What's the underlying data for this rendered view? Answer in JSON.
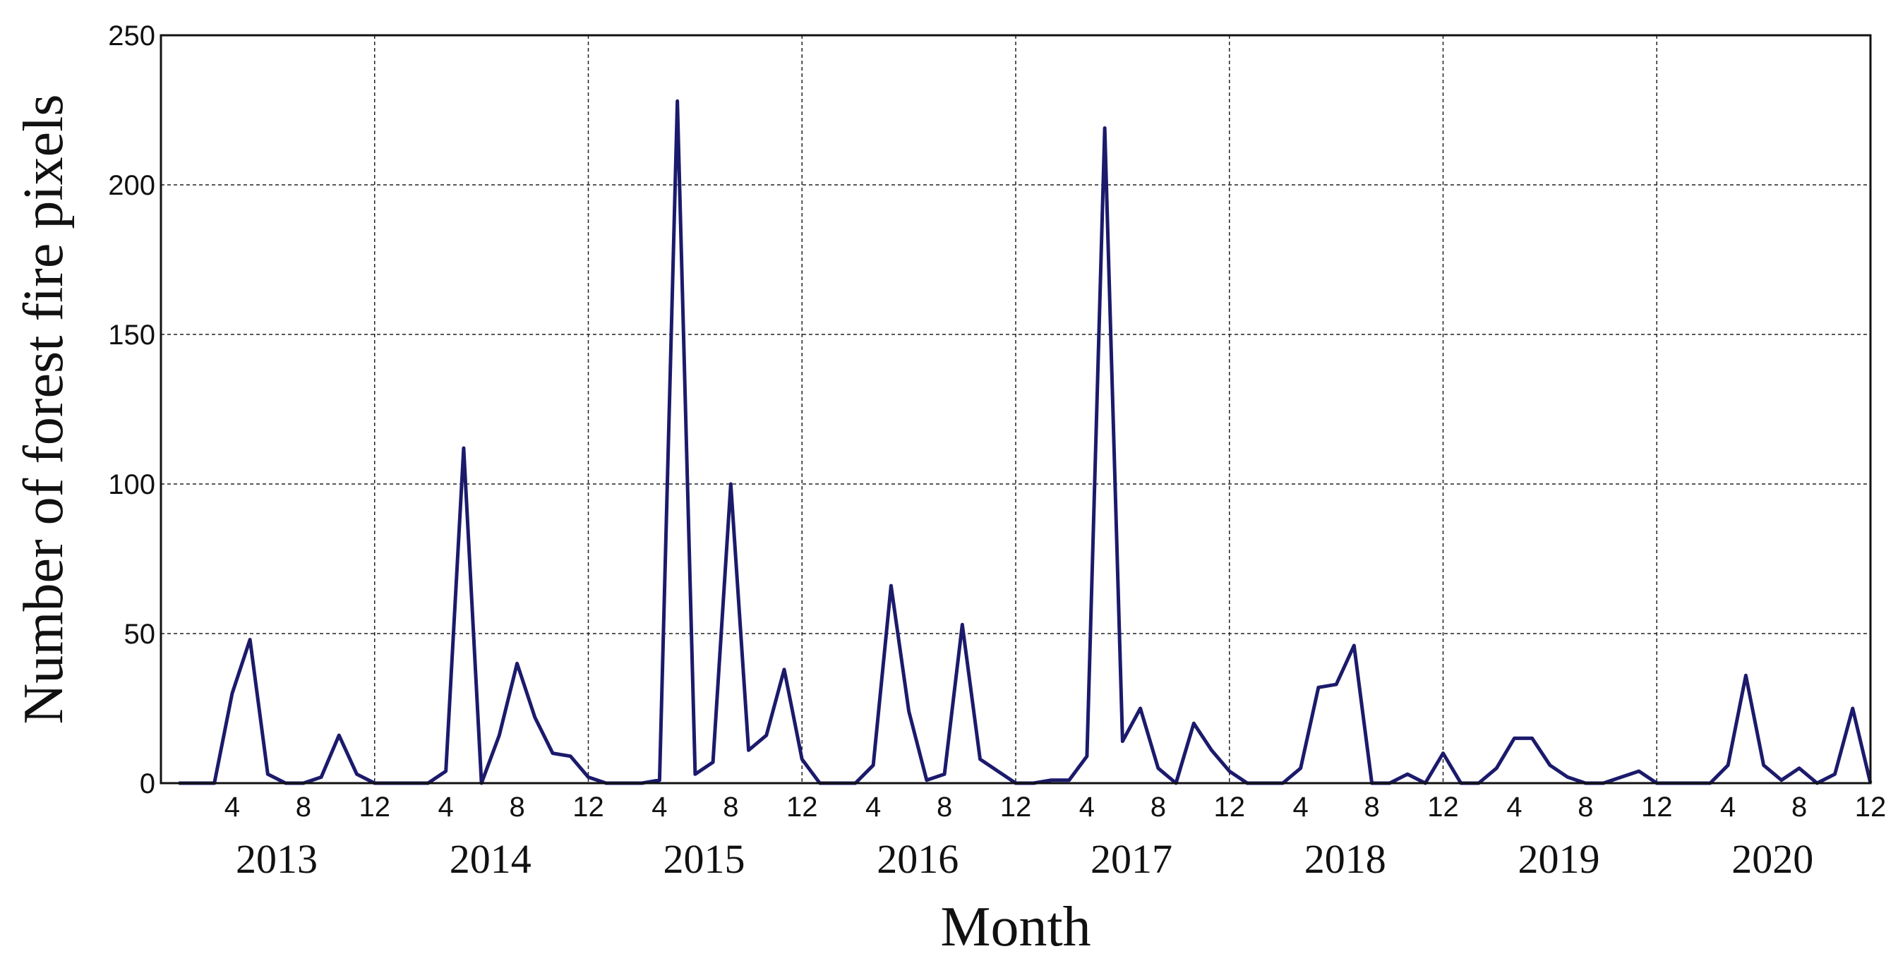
{
  "chart_data": {
    "type": "line",
    "title": "",
    "xlabel": "Month",
    "ylabel": "Number of forest fire pixels",
    "ylim": [
      0,
      250
    ],
    "yticks": [
      0,
      50,
      100,
      150,
      200,
      250
    ],
    "month_ticks": [
      "4",
      "8",
      "12"
    ],
    "grid": true,
    "years": [
      "2013",
      "2014",
      "2015",
      "2016",
      "2017",
      "2018",
      "2019",
      "2020"
    ],
    "series": [
      {
        "color": "#1c1a6b",
        "values": [
          0,
          0,
          0,
          30,
          48,
          3,
          0,
          0,
          2,
          16,
          3,
          0,
          0,
          0,
          0,
          4,
          112,
          0,
          16,
          40,
          22,
          10,
          9,
          2,
          0,
          0,
          0,
          1,
          228,
          3,
          7,
          100,
          11,
          16,
          38,
          8,
          0,
          0,
          0,
          6,
          66,
          24,
          1,
          3,
          53,
          8,
          4,
          0,
          0,
          1,
          1,
          9,
          219,
          14,
          25,
          5,
          0,
          20,
          11,
          4,
          0,
          0,
          0,
          5,
          32,
          33,
          46,
          0,
          0,
          3,
          0,
          10,
          0,
          0,
          5,
          15,
          15,
          6,
          2,
          0,
          0,
          2,
          4,
          0,
          0,
          0,
          0,
          6,
          36,
          6,
          1,
          5,
          0,
          3,
          25,
          0
        ]
      }
    ]
  }
}
